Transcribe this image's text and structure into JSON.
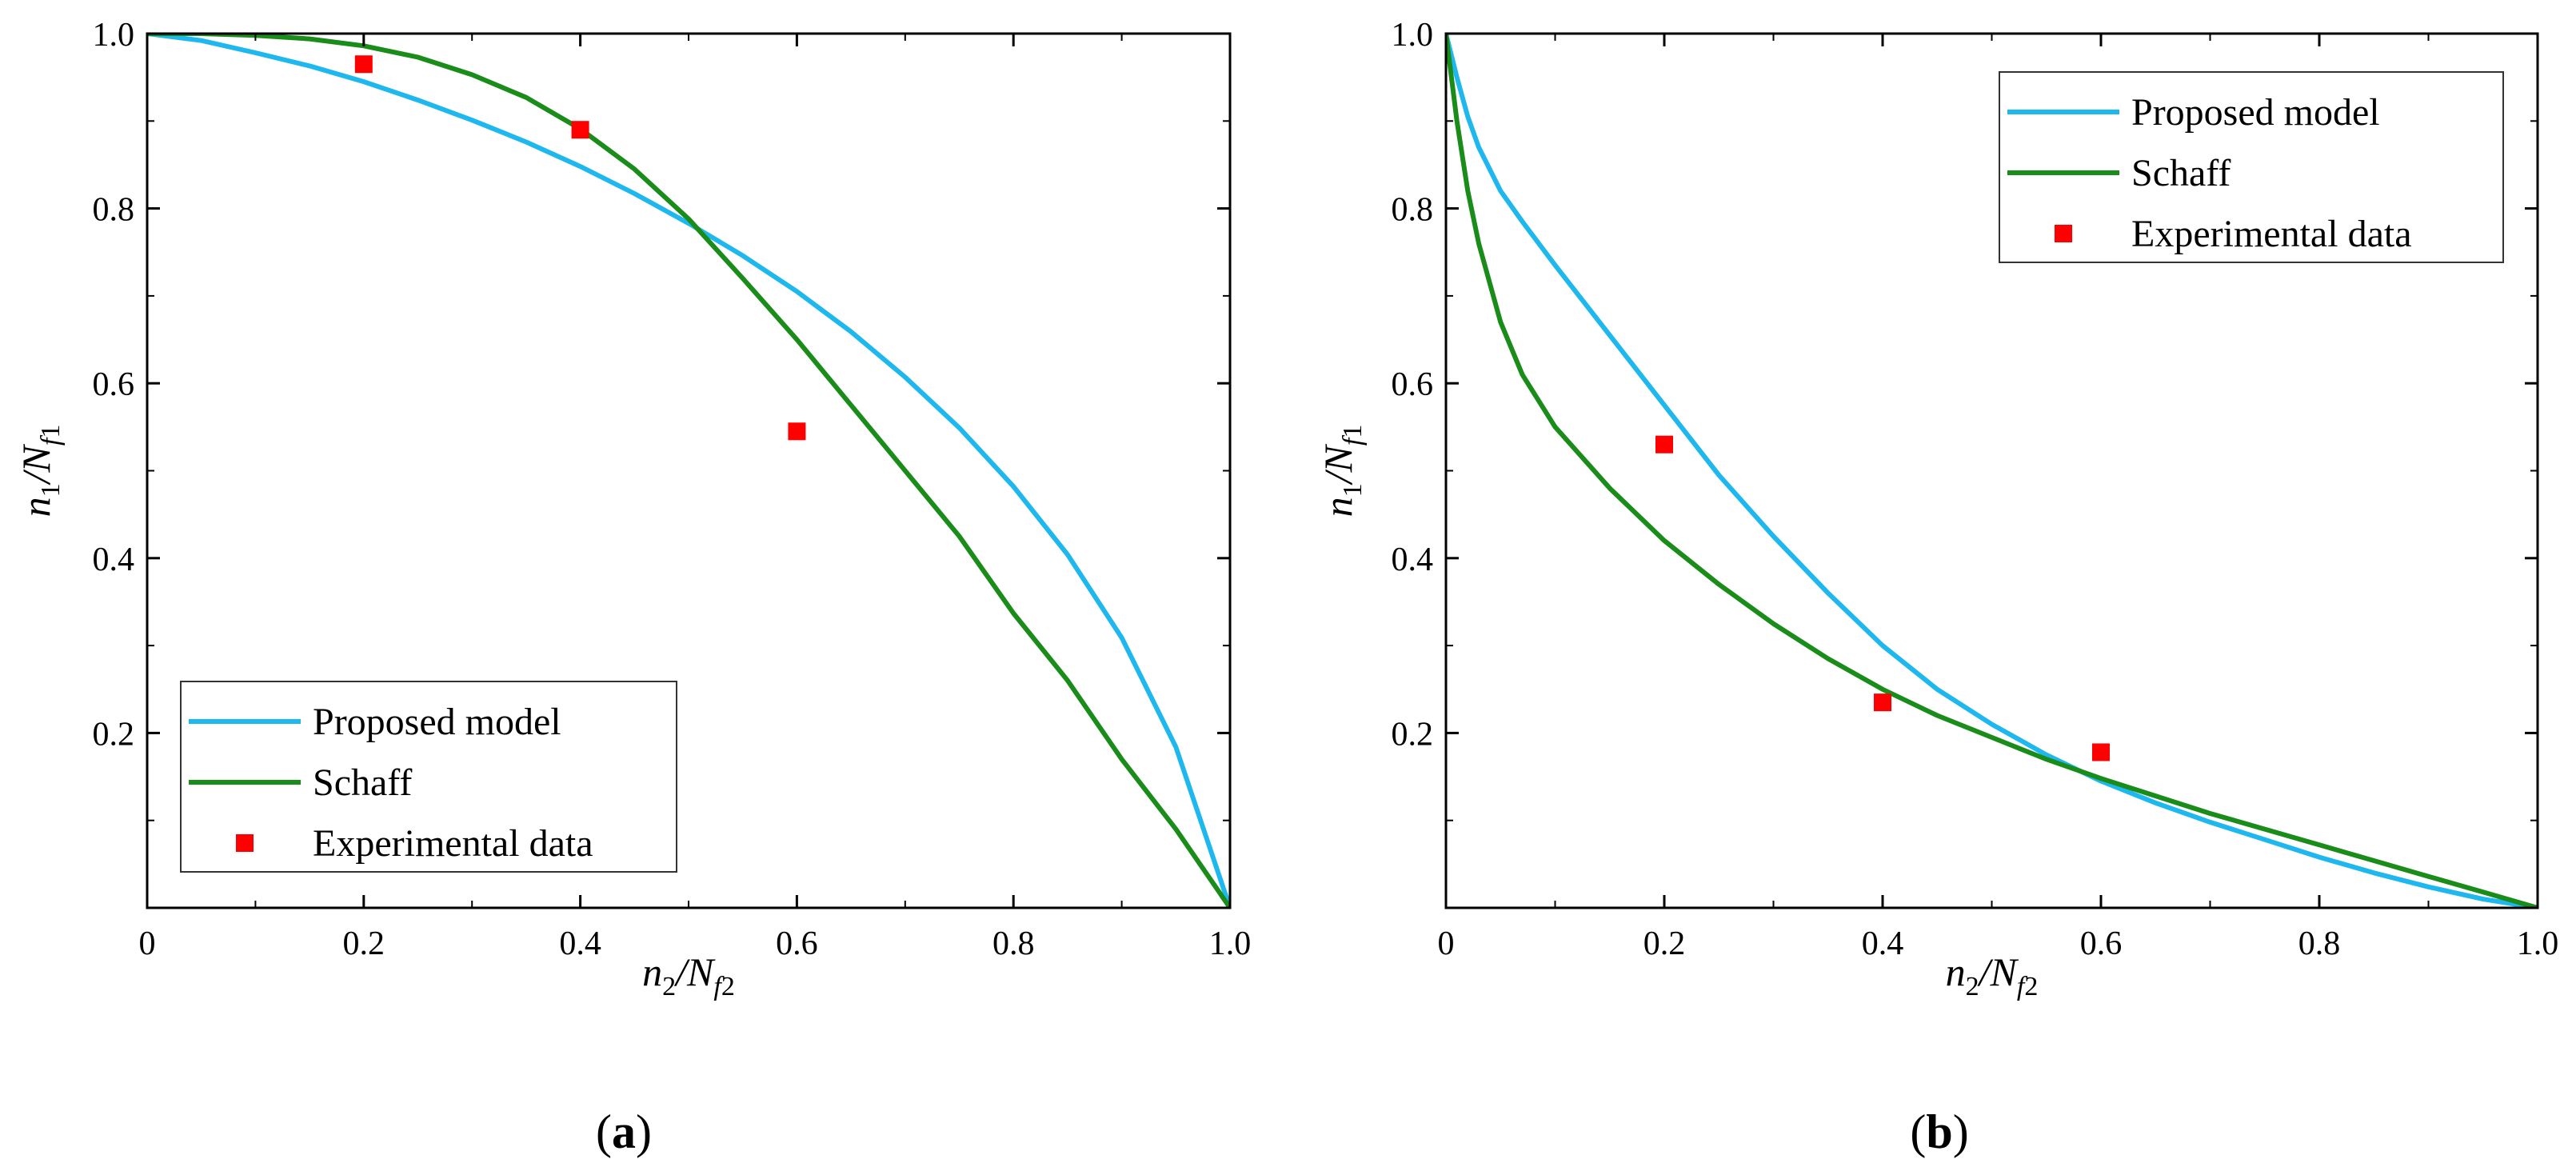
{
  "chart_data": [
    {
      "type": "line",
      "panel": "(a)",
      "panel_letter": "a",
      "xlabel": "n2/Nf2",
      "ylabel": "n1/Nf1",
      "xlim": [
        0,
        1.0
      ],
      "ylim": [
        0,
        1.0
      ],
      "x_ticks": [
        0,
        0.2,
        0.4,
        0.6,
        0.8,
        1.0
      ],
      "x_tick_labels": [
        "0",
        "0.2",
        "0.4",
        "0.6",
        "0.8",
        "1.0"
      ],
      "y_ticks": [
        0.2,
        0.4,
        0.6,
        0.8,
        1.0
      ],
      "y_tick_labels": [
        "0.2",
        "0.4",
        "0.6",
        "0.8",
        "1.0"
      ],
      "legend_position": "bottom-left",
      "series": [
        {
          "name": "Proposed model",
          "kind": "line",
          "color": "#1fb8ee",
          "x": [
            0,
            0.05,
            0.1,
            0.15,
            0.2,
            0.25,
            0.3,
            0.35,
            0.4,
            0.45,
            0.5,
            0.55,
            0.6,
            0.65,
            0.7,
            0.75,
            0.8,
            0.85,
            0.9,
            0.95,
            1.0
          ],
          "y": [
            1.0,
            0.992,
            0.978,
            0.963,
            0.945,
            0.924,
            0.901,
            0.876,
            0.848,
            0.817,
            0.783,
            0.746,
            0.705,
            0.659,
            0.607,
            0.549,
            0.482,
            0.404,
            0.309,
            0.184,
            0.0
          ]
        },
        {
          "name": "Schaff",
          "kind": "line",
          "color": "#1a8c1a",
          "x": [
            0,
            0.05,
            0.1,
            0.15,
            0.2,
            0.25,
            0.3,
            0.35,
            0.4,
            0.45,
            0.5,
            0.55,
            0.6,
            0.65,
            0.7,
            0.75,
            0.8,
            0.85,
            0.9,
            0.95,
            1.0
          ],
          "y": [
            1.0,
            1.0,
            0.998,
            0.994,
            0.986,
            0.973,
            0.953,
            0.927,
            0.891,
            0.845,
            0.788,
            0.72,
            0.65,
            0.575,
            0.5,
            0.425,
            0.337,
            0.26,
            0.17,
            0.09,
            0.0
          ]
        },
        {
          "name": "Experimental data",
          "kind": "scatter",
          "color": "#ff0000",
          "x": [
            0.2,
            0.4,
            0.6
          ],
          "y": [
            0.965,
            0.89,
            0.545
          ]
        }
      ]
    },
    {
      "type": "line",
      "panel": "(b)",
      "panel_letter": "b",
      "xlabel": "n2/Nf2",
      "ylabel": "n1/Nf1",
      "xlim": [
        0,
        1.0
      ],
      "ylim": [
        0,
        1.0
      ],
      "x_ticks": [
        0,
        0.2,
        0.4,
        0.6,
        0.8,
        1.0
      ],
      "x_tick_labels": [
        "0",
        "0.2",
        "0.4",
        "0.6",
        "0.8",
        "1.0"
      ],
      "y_ticks": [
        0.2,
        0.4,
        0.6,
        0.8,
        1.0
      ],
      "y_tick_labels": [
        "0.2",
        "0.4",
        "0.6",
        "0.8",
        "1.0"
      ],
      "legend_position": "top-right",
      "series": [
        {
          "name": "Proposed model",
          "kind": "line",
          "color": "#1fb8ee",
          "x": [
            0,
            0.01,
            0.02,
            0.03,
            0.05,
            0.07,
            0.1,
            0.15,
            0.2,
            0.25,
            0.3,
            0.35,
            0.4,
            0.45,
            0.5,
            0.55,
            0.6,
            0.65,
            0.7,
            0.75,
            0.8,
            0.85,
            0.9,
            0.95,
            1.0
          ],
          "y": [
            1.0,
            0.95,
            0.905,
            0.87,
            0.82,
            0.785,
            0.735,
            0.655,
            0.575,
            0.495,
            0.425,
            0.36,
            0.3,
            0.25,
            0.21,
            0.175,
            0.145,
            0.12,
            0.098,
            0.078,
            0.058,
            0.04,
            0.024,
            0.01,
            0.0
          ]
        },
        {
          "name": "Schaff",
          "kind": "line",
          "color": "#1a8c1a",
          "x": [
            0,
            0.01,
            0.02,
            0.03,
            0.05,
            0.07,
            0.1,
            0.15,
            0.2,
            0.25,
            0.3,
            0.35,
            0.4,
            0.45,
            0.5,
            0.55,
            0.6,
            0.65,
            0.7,
            0.75,
            0.8,
            0.85,
            0.9,
            0.95,
            1.0
          ],
          "y": [
            1.0,
            0.9,
            0.82,
            0.76,
            0.67,
            0.61,
            0.55,
            0.48,
            0.42,
            0.37,
            0.325,
            0.285,
            0.25,
            0.22,
            0.195,
            0.17,
            0.148,
            0.128,
            0.108,
            0.09,
            0.072,
            0.054,
            0.036,
            0.018,
            0.0
          ]
        },
        {
          "name": "Experimental data",
          "kind": "scatter",
          "color": "#ff0000",
          "x": [
            0.2,
            0.4,
            0.6
          ],
          "y": [
            0.53,
            0.235,
            0.178
          ]
        }
      ]
    }
  ]
}
